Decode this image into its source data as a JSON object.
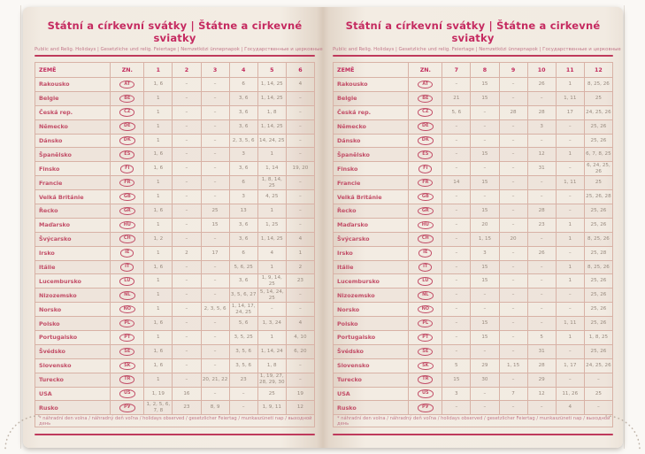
{
  "title": "Státní a církevní svátky | Štátne a cirkevné sviatky",
  "subtitle": "Public and Relig. Holidays | Gesetzliche und relig. Feiertage | Nemzetközi ünnepnapok | Государственные и церковные праздники",
  "footnote": "* náhradní den volna / náhradný deň voľna / holidays observed / gesetzlicher Feiertag / munkaszüneti nap / выходной день",
  "colors": {
    "accent_pink": "#c52a60",
    "country_text": "#c24e67",
    "value_text": "#97897d",
    "page_background": "#f2ebe2",
    "table_border": "#d8b2a6"
  },
  "left_page": {
    "columns": [
      "ZEMĚ",
      "ZN.",
      "1",
      "2",
      "3",
      "4",
      "5",
      "6"
    ],
    "rows": [
      {
        "country": "Rakousko",
        "code": "AT",
        "values": [
          "1, 6",
          "–",
          "–",
          "6",
          "1, 14, 25",
          "4"
        ]
      },
      {
        "country": "Belgie",
        "code": "BE",
        "values": [
          "1",
          "–",
          "–",
          "3, 6",
          "1, 14, 25",
          "–"
        ]
      },
      {
        "country": "Česká rep.",
        "code": "CZ",
        "values": [
          "1",
          "–",
          "–",
          "3, 6",
          "1, 8",
          "–"
        ]
      },
      {
        "country": "Německo",
        "code": "DE",
        "values": [
          "1",
          "–",
          "–",
          "3, 6",
          "1, 14, 25",
          "–"
        ]
      },
      {
        "country": "Dánsko",
        "code": "DK",
        "values": [
          "1",
          "–",
          "–",
          "2, 3, 5, 6",
          "14, 24, 25",
          "–"
        ]
      },
      {
        "country": "Španělsko",
        "code": "ES",
        "values": [
          "1, 6",
          "–",
          "–",
          "3",
          "1",
          "–"
        ]
      },
      {
        "country": "Finsko",
        "code": "FI",
        "values": [
          "1, 6",
          "–",
          "–",
          "3, 6",
          "1, 14",
          "19, 20"
        ]
      },
      {
        "country": "Francie",
        "code": "FR",
        "values": [
          "1",
          "–",
          "–",
          "6",
          "1, 8, 14, 25",
          "–"
        ]
      },
      {
        "country": "Velká Británie",
        "code": "GB",
        "values": [
          "1",
          "–",
          "–",
          "3",
          "4, 25",
          "–"
        ]
      },
      {
        "country": "Řecko",
        "code": "GR",
        "values": [
          "1, 6",
          "–",
          "25",
          "13",
          "1",
          "–"
        ]
      },
      {
        "country": "Maďarsko",
        "code": "HU",
        "values": [
          "1",
          "–",
          "15",
          "3, 6",
          "1, 25",
          "–"
        ]
      },
      {
        "country": "Švýcarsko",
        "code": "CH",
        "values": [
          "1, 2",
          "–",
          "–",
          "3, 6",
          "1, 14, 25",
          "4"
        ]
      },
      {
        "country": "Irsko",
        "code": "IE",
        "values": [
          "1",
          "2",
          "17",
          "6",
          "4",
          "1"
        ]
      },
      {
        "country": "Itálie",
        "code": "IT",
        "values": [
          "1, 6",
          "–",
          "–",
          "5, 6, 25",
          "1",
          "2"
        ]
      },
      {
        "country": "Lucembursko",
        "code": "LU",
        "values": [
          "1",
          "–",
          "–",
          "3, 6",
          "1, 9, 14, 25",
          "23"
        ]
      },
      {
        "country": "Nizozemsko",
        "code": "NL",
        "values": [
          "1",
          "–",
          "–",
          "3, 5, 6, 27",
          "5, 14, 24, 25",
          "–"
        ]
      },
      {
        "country": "Norsko",
        "code": "NO",
        "values": [
          "1",
          "–",
          "2, 3, 5, 6",
          "1, 14, 17, 24, 25",
          "–",
          "–"
        ]
      },
      {
        "country": "Polsko",
        "code": "PL",
        "values": [
          "1, 6",
          "–",
          "–",
          "5, 6",
          "1, 3, 24",
          "4"
        ]
      },
      {
        "country": "Portugalsko",
        "code": "PT",
        "values": [
          "1",
          "–",
          "–",
          "3, 5, 25",
          "1",
          "4, 10"
        ]
      },
      {
        "country": "Švédsko",
        "code": "SE",
        "values": [
          "1, 6",
          "–",
          "–",
          "3, 5, 6",
          "1, 14, 24",
          "6, 20"
        ]
      },
      {
        "country": "Slovensko",
        "code": "SK",
        "values": [
          "1, 6",
          "–",
          "–",
          "3, 5, 6",
          "1, 8",
          "–"
        ]
      },
      {
        "country": "Turecko",
        "code": "TR",
        "values": [
          "1",
          "–",
          "20, 21, 22",
          "23",
          "1, 19, 27, 28, 29, 30",
          "–"
        ]
      },
      {
        "country": "USA",
        "code": "US",
        "values": [
          "1, 19",
          "16",
          "–",
          "–",
          "25",
          "19"
        ]
      },
      {
        "country": "Rusko",
        "code": "РУ",
        "values": [
          "1, 2, 5, 6, 7, 8",
          "23",
          "8, 9",
          "–",
          "1, 9, 11",
          "12"
        ]
      }
    ]
  },
  "right_page": {
    "columns": [
      "ZEMĚ",
      "ZN.",
      "7",
      "8",
      "9",
      "10",
      "11",
      "12"
    ],
    "rows": [
      {
        "country": "Rakousko",
        "code": "AT",
        "values": [
          "–",
          "15",
          "–",
          "26",
          "1",
          "8, 25, 26"
        ]
      },
      {
        "country": "Belgie",
        "code": "BE",
        "values": [
          "21",
          "15",
          "–",
          "–",
          "1, 11",
          "25"
        ]
      },
      {
        "country": "Česká rep.",
        "code": "CZ",
        "values": [
          "5, 6",
          "–",
          "28",
          "28",
          "17",
          "24, 25, 26"
        ]
      },
      {
        "country": "Německo",
        "code": "DE",
        "values": [
          "–",
          "–",
          "–",
          "3",
          "–",
          "25, 26"
        ]
      },
      {
        "country": "Dánsko",
        "code": "DK",
        "values": [
          "–",
          "–",
          "–",
          "–",
          "–",
          "25, 26"
        ]
      },
      {
        "country": "Španělsko",
        "code": "ES",
        "values": [
          "–",
          "15",
          "–",
          "12",
          "1",
          "6, 7, 8, 25"
        ]
      },
      {
        "country": "Finsko",
        "code": "FI",
        "values": [
          "–",
          "–",
          "–",
          "31",
          "–",
          "6, 24, 25, 26"
        ]
      },
      {
        "country": "Francie",
        "code": "FR",
        "values": [
          "14",
          "15",
          "–",
          "–",
          "1, 11",
          "25"
        ]
      },
      {
        "country": "Velká Británie",
        "code": "GB",
        "values": [
          "–",
          "–",
          "–",
          "–",
          "–",
          "25, 26, 28"
        ]
      },
      {
        "country": "Řecko",
        "code": "GR",
        "values": [
          "–",
          "15",
          "–",
          "28",
          "–",
          "25, 26"
        ]
      },
      {
        "country": "Maďarsko",
        "code": "HU",
        "values": [
          "–",
          "20",
          "–",
          "23",
          "1",
          "25, 26"
        ]
      },
      {
        "country": "Švýcarsko",
        "code": "CH",
        "values": [
          "–",
          "1, 15",
          "20",
          "–",
          "1",
          "8, 25, 26"
        ]
      },
      {
        "country": "Irsko",
        "code": "IE",
        "values": [
          "–",
          "3",
          "–",
          "26",
          "–",
          "25, 28"
        ]
      },
      {
        "country": "Itálie",
        "code": "IT",
        "values": [
          "–",
          "15",
          "–",
          "–",
          "1",
          "8, 25, 26"
        ]
      },
      {
        "country": "Lucembursko",
        "code": "LU",
        "values": [
          "–",
          "15",
          "–",
          "–",
          "1",
          "25, 26"
        ]
      },
      {
        "country": "Nizozemsko",
        "code": "NL",
        "values": [
          "–",
          "–",
          "–",
          "–",
          "–",
          "25, 26"
        ]
      },
      {
        "country": "Norsko",
        "code": "NO",
        "values": [
          "–",
          "–",
          "–",
          "–",
          "–",
          "25, 26"
        ]
      },
      {
        "country": "Polsko",
        "code": "PL",
        "values": [
          "–",
          "15",
          "–",
          "–",
          "1, 11",
          "25, 26"
        ]
      },
      {
        "country": "Portugalsko",
        "code": "PT",
        "values": [
          "–",
          "15",
          "–",
          "5",
          "1",
          "1, 8, 25"
        ]
      },
      {
        "country": "Švédsko",
        "code": "SE",
        "values": [
          "–",
          "–",
          "–",
          "31",
          "–",
          "25, 26"
        ]
      },
      {
        "country": "Slovensko",
        "code": "SK",
        "values": [
          "5",
          "29",
          "1, 15",
          "28",
          "1, 17",
          "24, 25, 26"
        ]
      },
      {
        "country": "Turecko",
        "code": "TR",
        "values": [
          "15",
          "30",
          "–",
          "29",
          "–",
          "–"
        ]
      },
      {
        "country": "USA",
        "code": "US",
        "values": [
          "3",
          "–",
          "7",
          "12",
          "11, 26",
          "25"
        ]
      },
      {
        "country": "Rusko",
        "code": "РУ",
        "values": [
          "–",
          "–",
          "–",
          "–",
          "4",
          "–"
        ]
      }
    ]
  }
}
